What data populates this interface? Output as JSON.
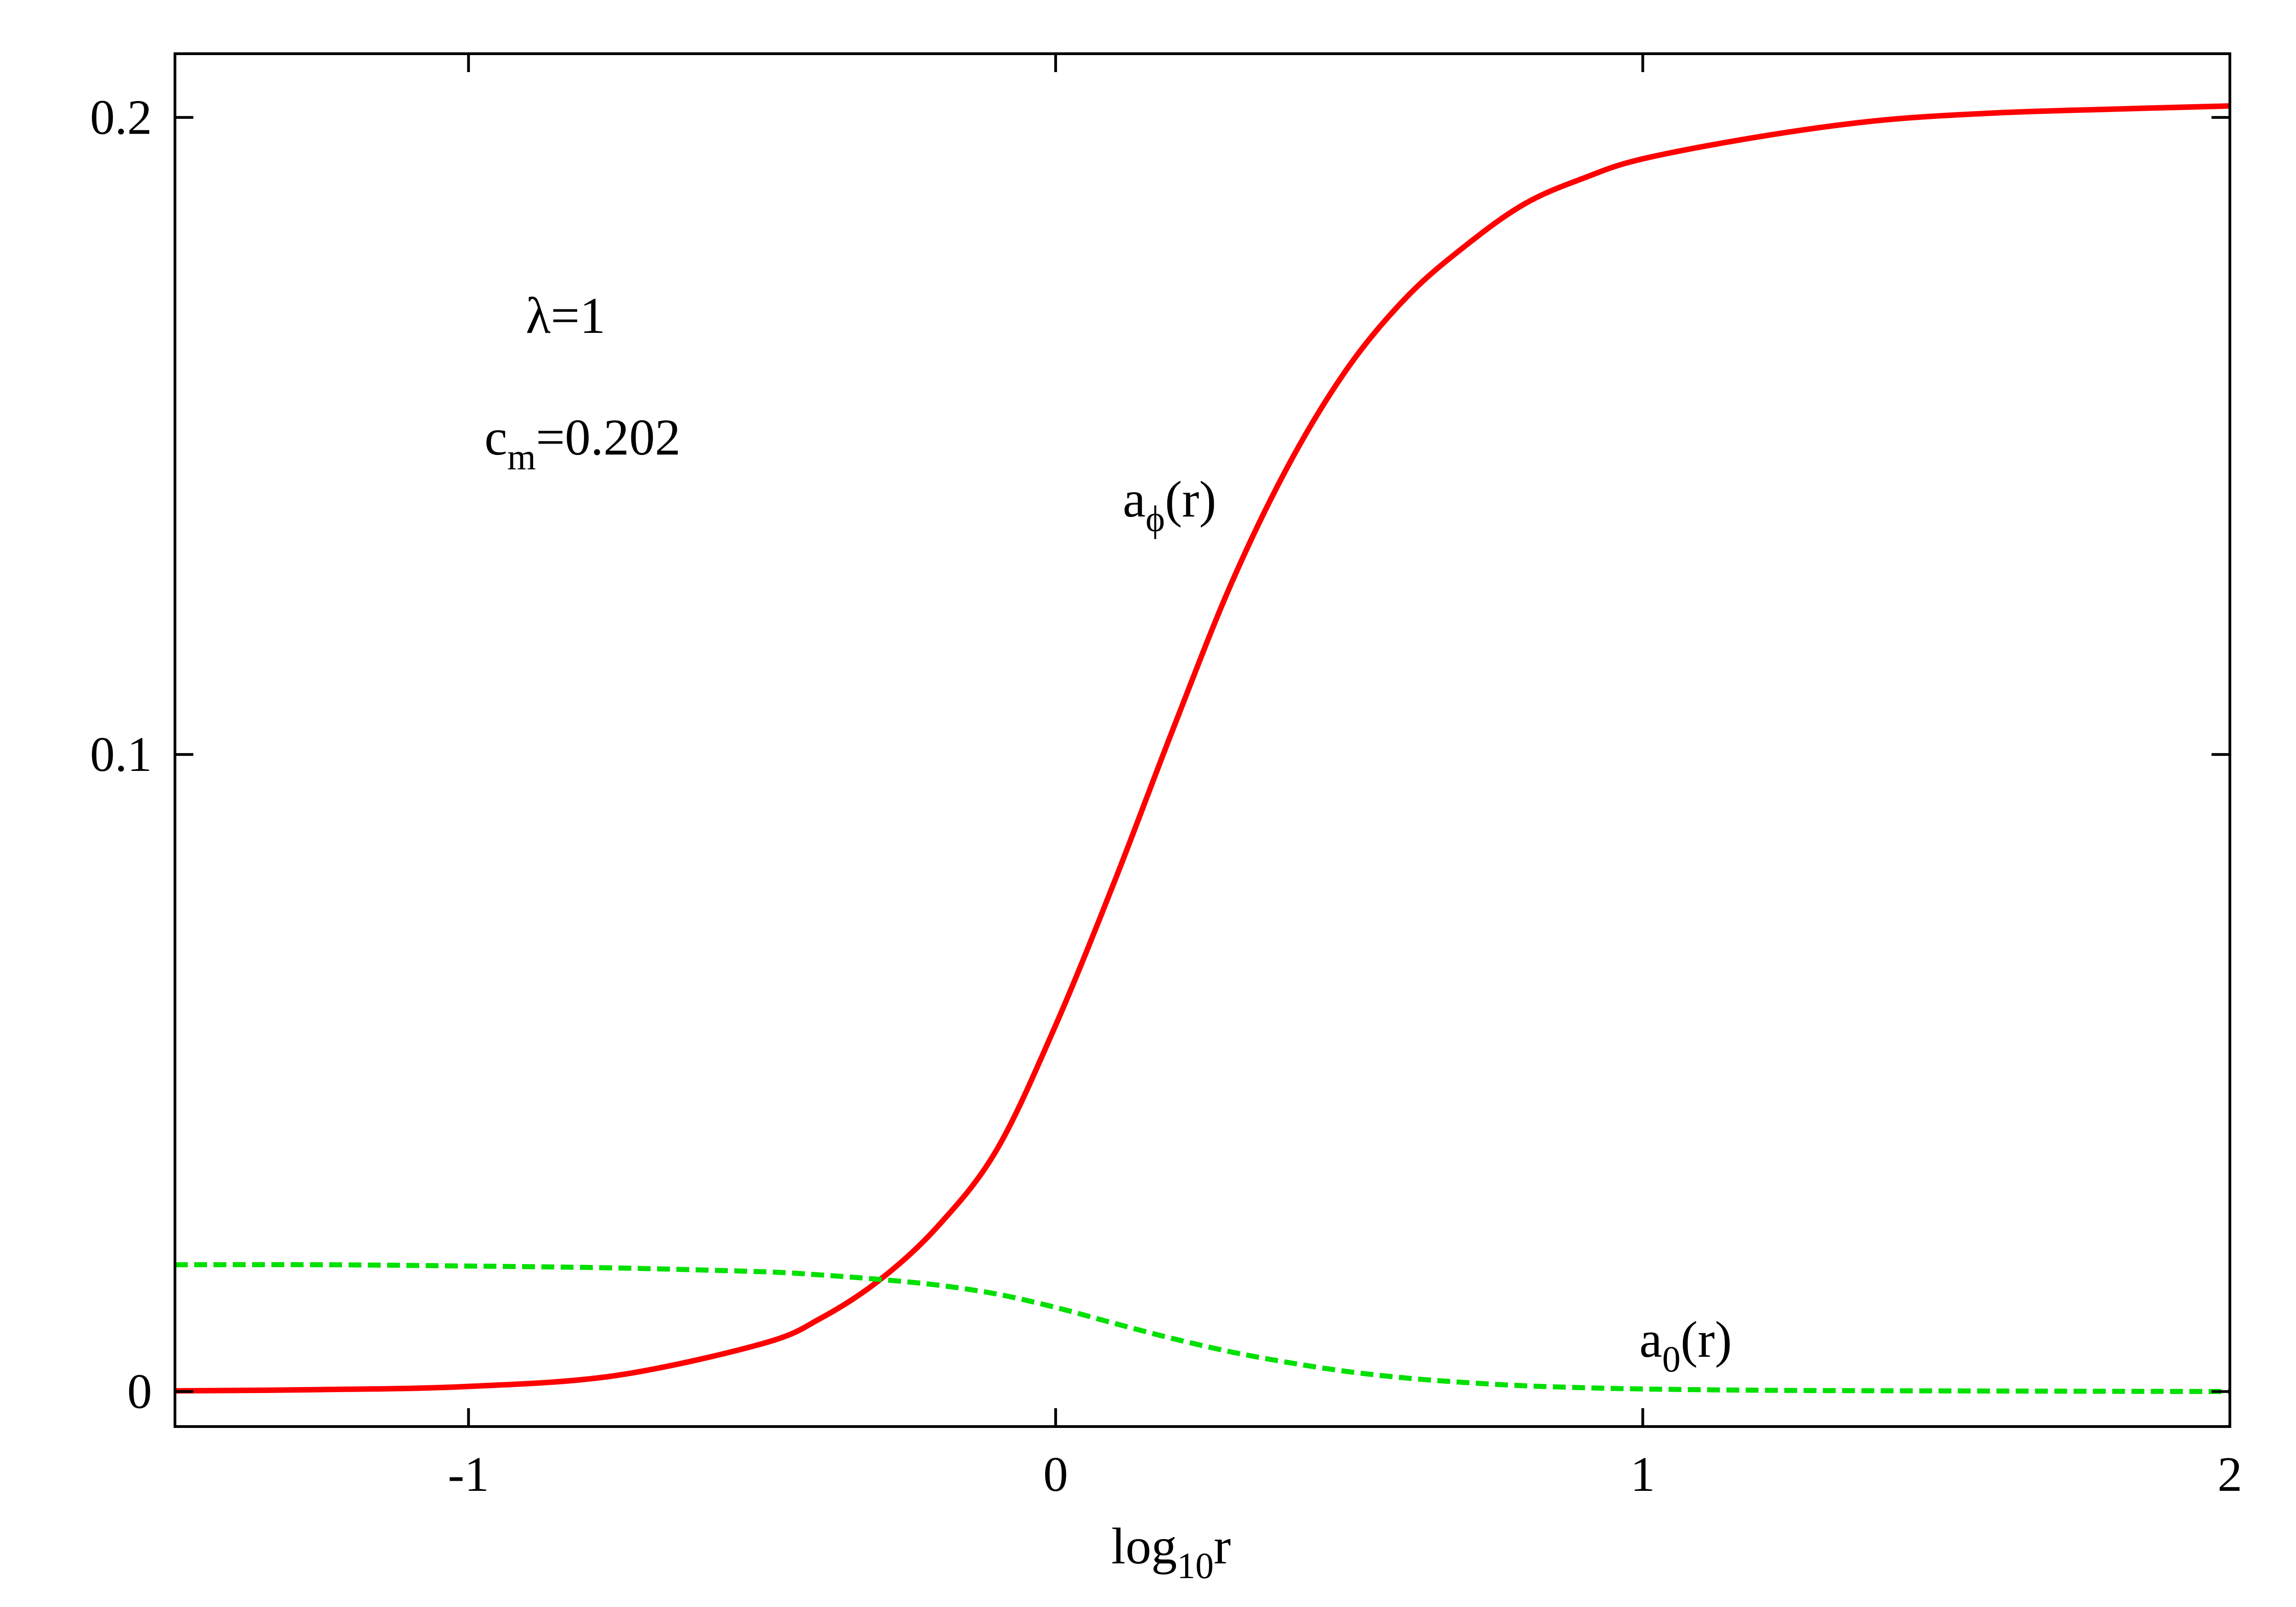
{
  "chart_data": {
    "type": "line",
    "title": "",
    "xlabel": {
      "base": "log",
      "sub": "10",
      "tail": "r"
    },
    "ylabel": "",
    "xlim": [
      -1.5,
      2
    ],
    "ylim": [
      -0.0055,
      0.21
    ],
    "xticks": [
      {
        "value": -1,
        "label": "-1"
      },
      {
        "value": 0,
        "label": "0"
      },
      {
        "value": 1,
        "label": "1"
      },
      {
        "value": 2,
        "label": "2"
      }
    ],
    "yticks": [
      {
        "value": 0,
        "label": "0"
      },
      {
        "value": 0.1,
        "label": "0.1"
      },
      {
        "value": 0.2,
        "label": "0.2"
      }
    ],
    "grid": false,
    "legend": "none",
    "series": [
      {
        "label": {
          "base": "a",
          "sub": "ϕ",
          "tail": "(r)"
        },
        "color": "#ff0000",
        "style": "solid",
        "points": [
          [
            -1.5,
            0.0001
          ],
          [
            -1.25,
            0.0003
          ],
          [
            -1.0,
            0.0008
          ],
          [
            -0.75,
            0.0025
          ],
          [
            -0.5,
            0.0075
          ],
          [
            -0.4,
            0.0115
          ],
          [
            -0.3,
            0.0175
          ],
          [
            -0.2,
            0.026
          ],
          [
            -0.1,
            0.038
          ],
          [
            0.0,
            0.0575
          ],
          [
            0.1,
            0.08
          ],
          [
            0.2,
            0.104
          ],
          [
            0.3,
            0.127
          ],
          [
            0.4,
            0.146
          ],
          [
            0.5,
            0.161
          ],
          [
            0.6,
            0.172
          ],
          [
            0.7,
            0.18
          ],
          [
            0.8,
            0.1865
          ],
          [
            0.9,
            0.1905
          ],
          [
            1.0,
            0.1935
          ],
          [
            1.2,
            0.197
          ],
          [
            1.4,
            0.1995
          ],
          [
            1.6,
            0.2007
          ],
          [
            1.8,
            0.2013
          ],
          [
            2.0,
            0.2018
          ]
        ]
      },
      {
        "label": {
          "base": "a",
          "sub": "0",
          "tail": "(r)"
        },
        "color": "#00e000",
        "style": "dashed",
        "points": [
          [
            -1.5,
            0.0199
          ],
          [
            -1.25,
            0.0199
          ],
          [
            -1.0,
            0.0197
          ],
          [
            -0.75,
            0.0194
          ],
          [
            -0.5,
            0.0188
          ],
          [
            -0.4,
            0.0183
          ],
          [
            -0.3,
            0.0176
          ],
          [
            -0.2,
            0.0167
          ],
          [
            -0.1,
            0.0153
          ],
          [
            0.0,
            0.0132
          ],
          [
            0.1,
            0.0107
          ],
          [
            0.2,
            0.0083
          ],
          [
            0.3,
            0.0062
          ],
          [
            0.4,
            0.0045
          ],
          [
            0.5,
            0.0031
          ],
          [
            0.6,
            0.0021
          ],
          [
            0.7,
            0.0014
          ],
          [
            0.8,
            0.0009
          ],
          [
            0.9,
            0.0006
          ],
          [
            1.0,
            0.0004
          ],
          [
            1.2,
            0.0002
          ],
          [
            1.5,
            0.0001
          ],
          [
            2.0,
            0.0
          ]
        ]
      }
    ],
    "annotations": [
      {
        "base": "λ=1",
        "sub": "",
        "tail": ""
      },
      {
        "base": "c",
        "sub": "m",
        "tail": "=0.202"
      }
    ]
  }
}
